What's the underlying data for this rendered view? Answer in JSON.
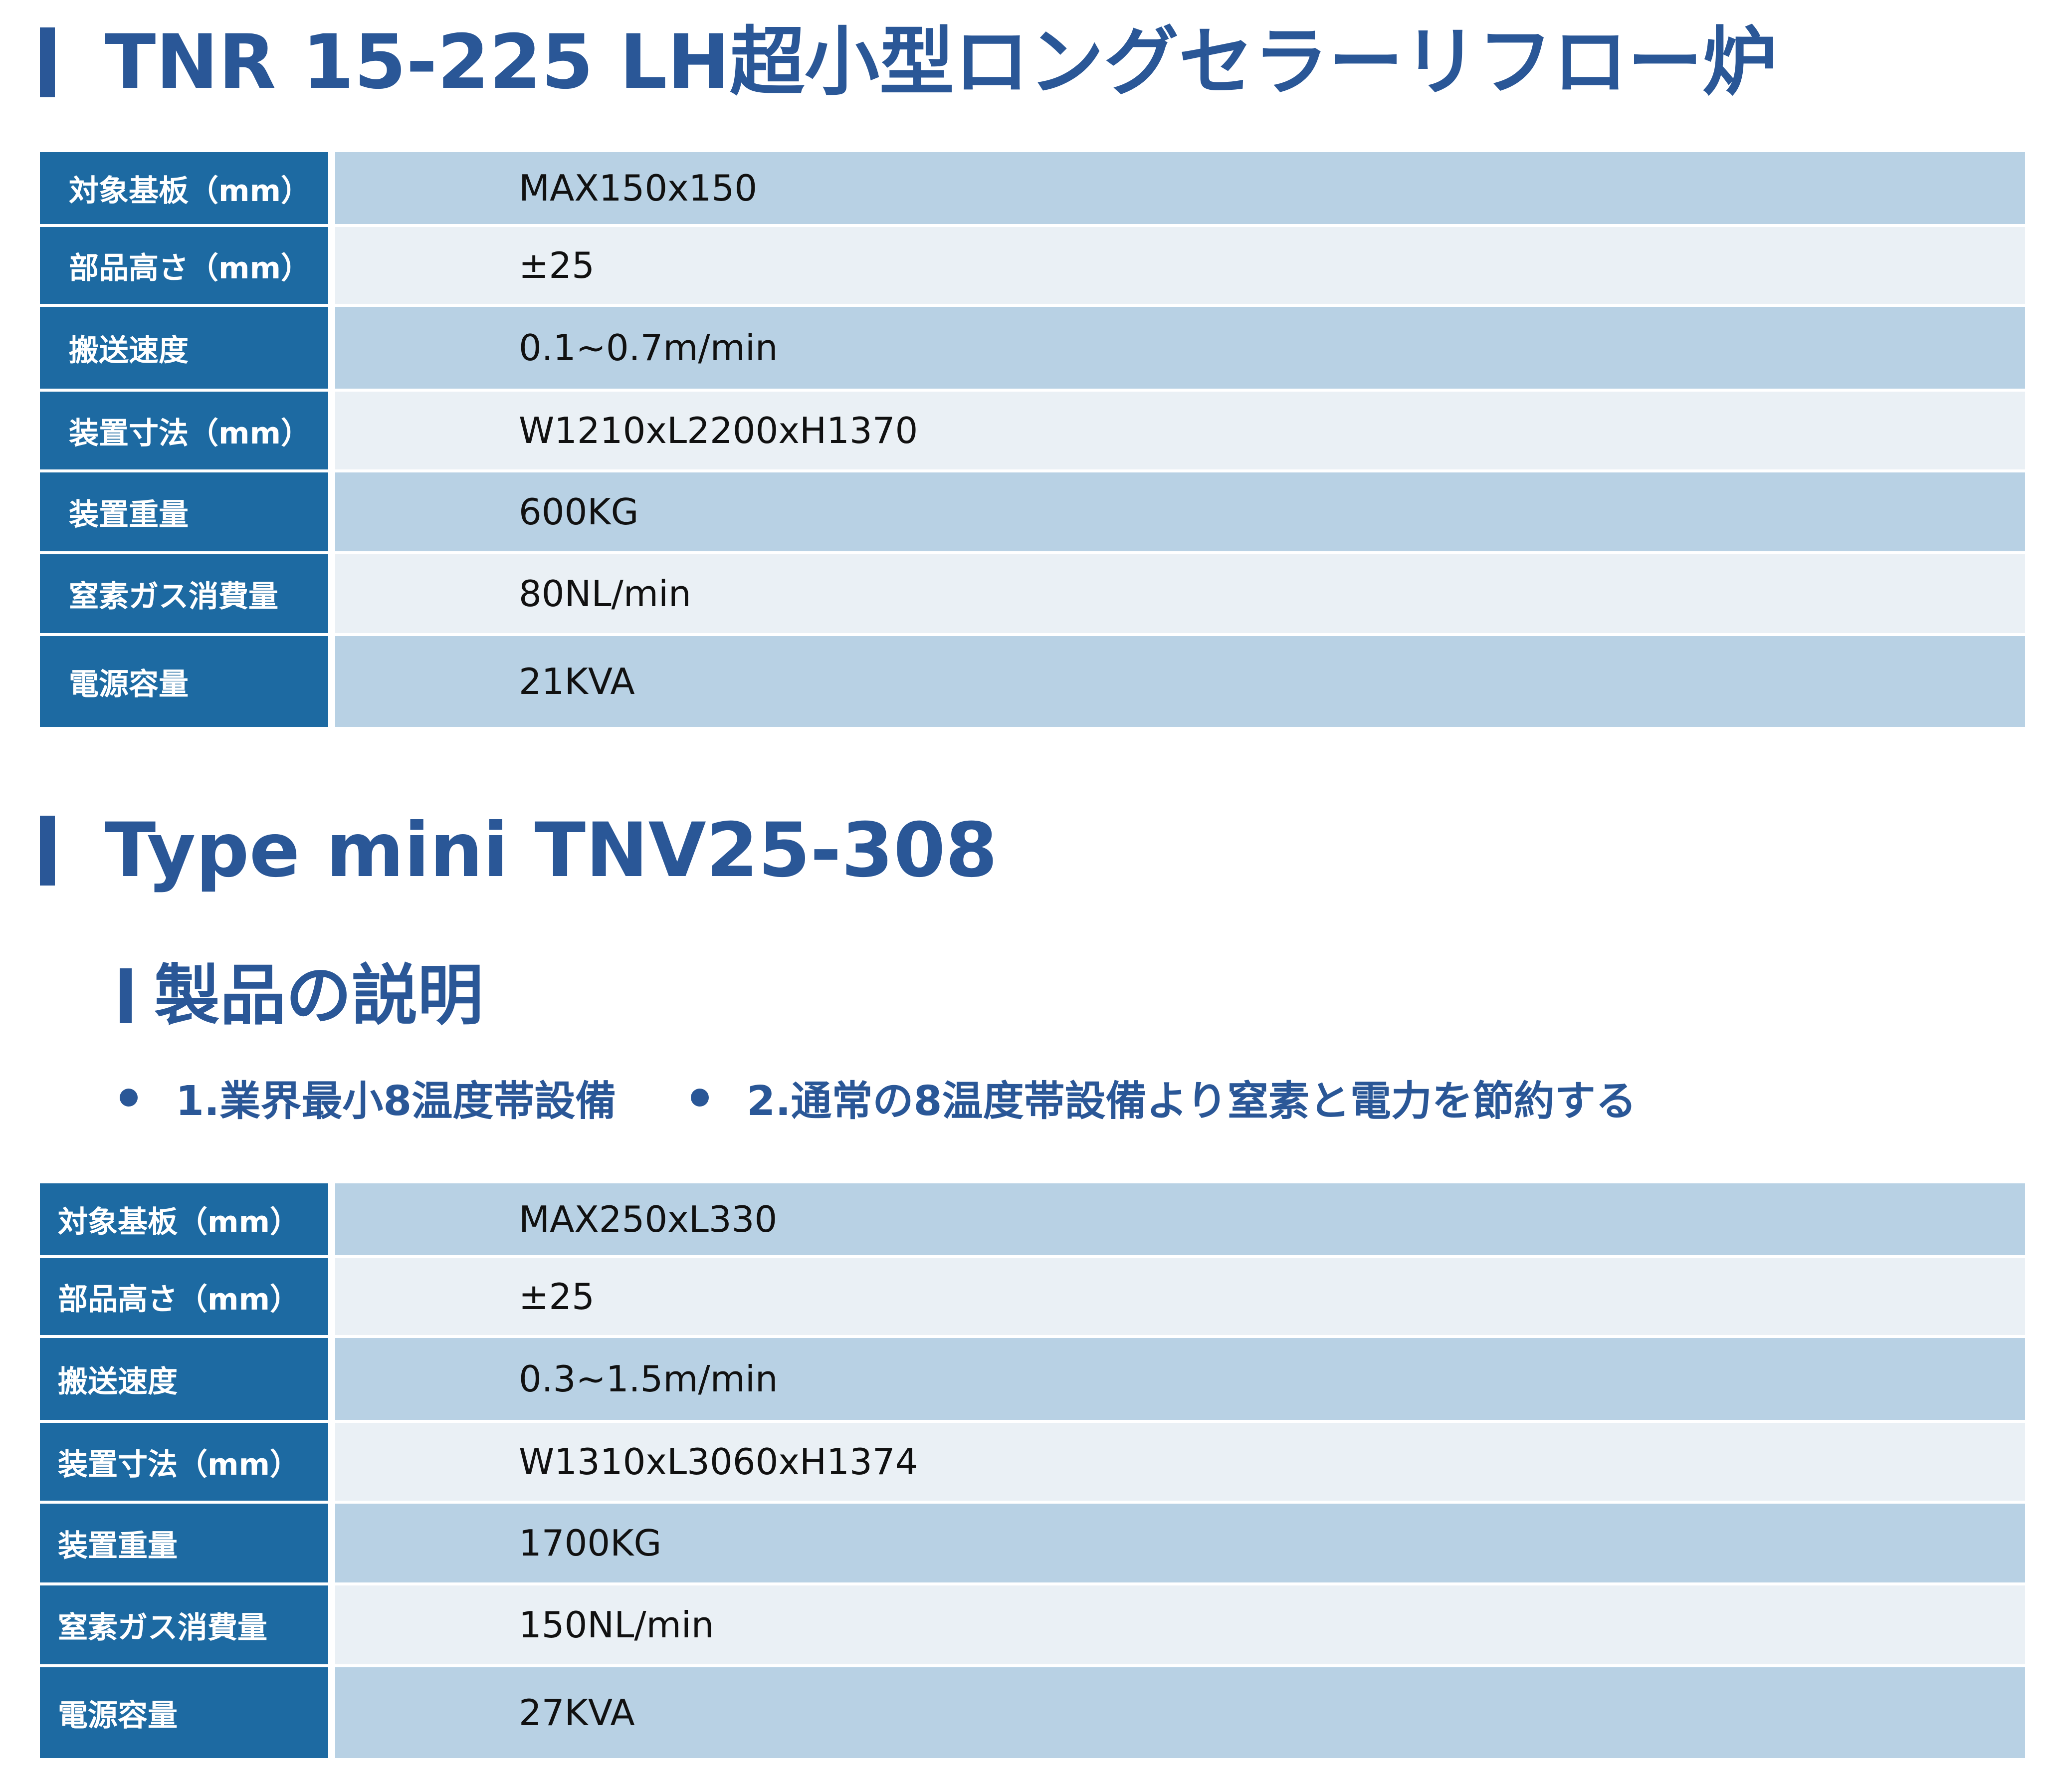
{
  "section1": {
    "title": "TNR 15-225 LH超小型ロングセラーリフロー炉",
    "specs": [
      {
        "label": "対象基板（mm）",
        "value": "MAX150x150"
      },
      {
        "label": "部品高さ（mm）",
        "value": "±25"
      },
      {
        "label": "搬送速度",
        "value": "0.1~0.7m/min"
      },
      {
        "label": "装置寸法（mm）",
        "value": "W1210xL2200xH1370"
      },
      {
        "label": "装置重量",
        "value": "600KG"
      },
      {
        "label": "窒素ガス消費量",
        "value": "80NL/min"
      },
      {
        "label": "電源容量",
        "value": "21KVA"
      }
    ]
  },
  "section2": {
    "title": "Type mini TNV25-308",
    "subheading": "製品の説明",
    "bullets": [
      "1.業界最小8温度帯設備",
      "2.通常の8温度帯設備より窒素と電力を節約する"
    ],
    "specs": [
      {
        "label": "対象基板（mm）",
        "value": "MAX250xL330"
      },
      {
        "label": "部品高さ（mm）",
        "value": "±25"
      },
      {
        "label": "搬送速度",
        "value": "0.3~1.5m/min"
      },
      {
        "label": "装置寸法（mm）",
        "value": "W1310xL3060xH1374"
      },
      {
        "label": "装置重量",
        "value": "1700KG"
      },
      {
        "label": "窒素ガス消費量",
        "value": "150NL/min"
      },
      {
        "label": "電源容量",
        "value": "27KVA"
      }
    ]
  },
  "colors": {
    "heading": "#2a5797",
    "label_bg": "#1d6aa2",
    "value_bg_dark": "#b8d1e4",
    "value_bg_light": "#eaf0f5"
  }
}
